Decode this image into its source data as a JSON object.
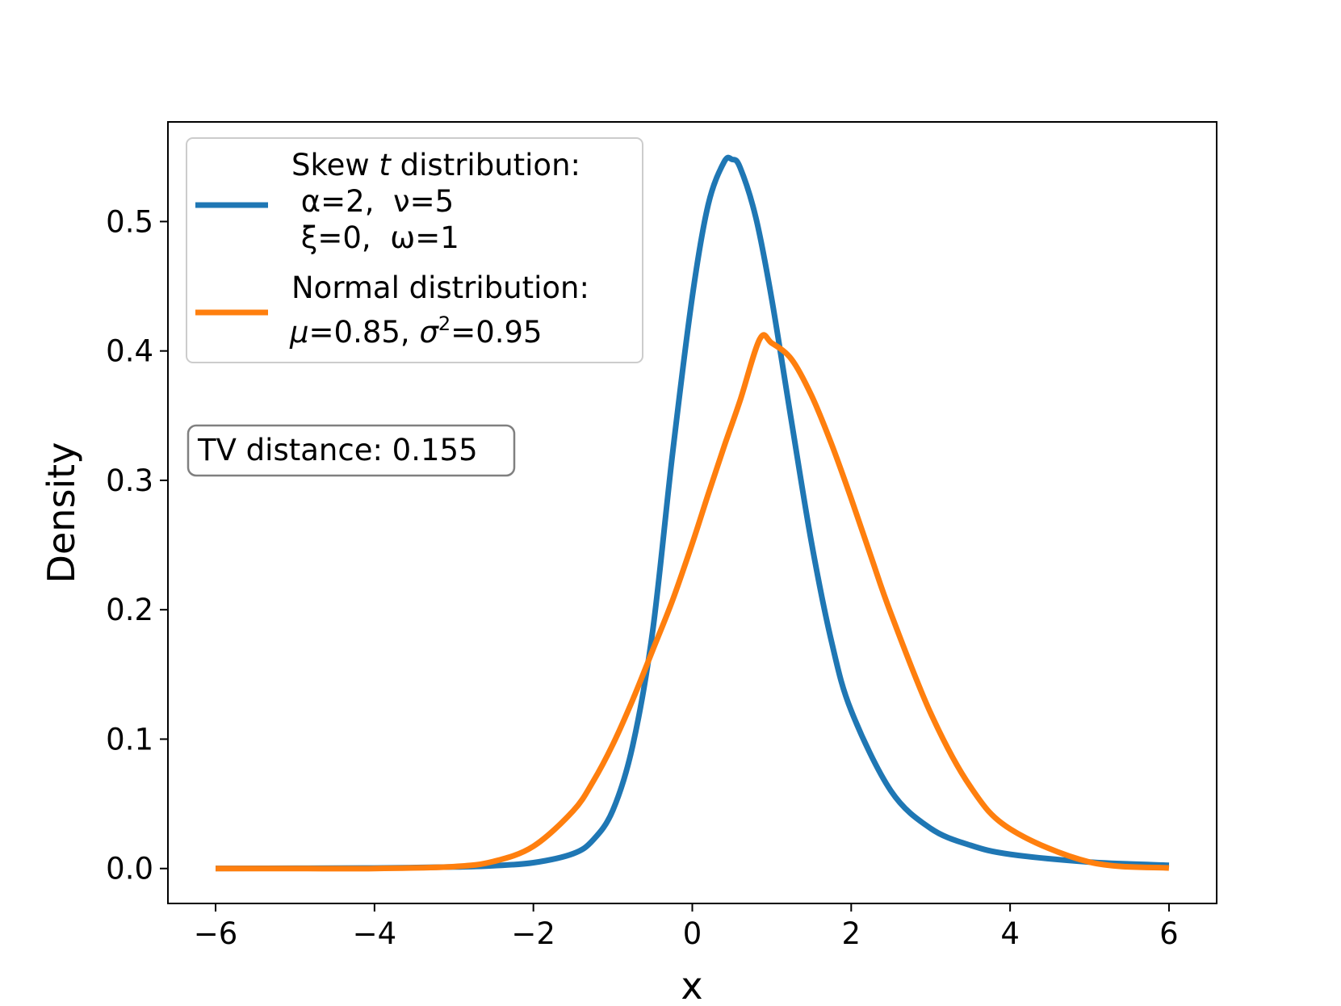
{
  "chart_data": {
    "type": "line",
    "title": "",
    "xlabel": "x",
    "ylabel": "Density",
    "xlim": [
      -6.6,
      6.6
    ],
    "ylim": [
      -0.027,
      0.577
    ],
    "xticks": [
      -6,
      -4,
      -2,
      0,
      2,
      4,
      6
    ],
    "xtick_labels": [
      "−6",
      "−4",
      "−2",
      "0",
      "2",
      "4",
      "6"
    ],
    "yticks": [
      0.0,
      0.1,
      0.2,
      0.3,
      0.4,
      0.5
    ],
    "ytick_labels": [
      "0.0",
      "0.1",
      "0.2",
      "0.3",
      "0.4",
      "0.5"
    ],
    "grid": false,
    "legend_position": "upper-left",
    "series": [
      {
        "name": "Skew t distribution: α=2, ν=5 ξ=0, ω=1",
        "color": "#1f77b4",
        "x": [
          -6,
          -5,
          -4,
          -3,
          -2.5,
          -2,
          -1.5,
          -1.25,
          -1,
          -0.75,
          -0.5,
          -0.25,
          0,
          0.2,
          0.4,
          0.5,
          0.6,
          0.8,
          1.0,
          1.25,
          1.5,
          1.75,
          2.0,
          2.5,
          3.0,
          3.5,
          4.0,
          5.0,
          6.0
        ],
        "y": [
          0.0001,
          0.0002,
          0.0004,
          0.0012,
          0.0022,
          0.0045,
          0.0115,
          0.022,
          0.045,
          0.095,
          0.183,
          0.32,
          0.442,
          0.513,
          0.546,
          0.548,
          0.542,
          0.503,
          0.44,
          0.345,
          0.252,
          0.176,
          0.122,
          0.06,
          0.031,
          0.018,
          0.011,
          0.005,
          0.0025
        ]
      },
      {
        "name": "Normal distribution: μ=0.85, σ²=0.95",
        "color": "#ff7f0e",
        "x": [
          -6,
          -5,
          -4,
          -3,
          -2.5,
          -2,
          -1.5,
          -1.25,
          -1,
          -0.75,
          -0.5,
          -0.25,
          0,
          0.2,
          0.4,
          0.6,
          0.85,
          1.0,
          1.25,
          1.5,
          1.75,
          2.0,
          2.25,
          2.5,
          3.0,
          3.5,
          4.0,
          5.0,
          6.0
        ],
        "y": [
          0.0,
          0.0,
          0.0,
          0.0015,
          0.0055,
          0.0172,
          0.0445,
          0.0671,
          0.0959,
          0.1304,
          0.1685,
          0.2071,
          0.2513,
          0.2892,
          0.3261,
          0.3614,
          0.4093,
          0.4061,
          0.3935,
          0.3656,
          0.3284,
          0.2859,
          0.241,
          0.1971,
          0.1201,
          0.0633,
          0.0306,
          0.005,
          0.0004
        ]
      }
    ],
    "legend": {
      "entries": [
        {
          "color": "#1f77b4",
          "lines": [
            {
              "prefix": "Skew ",
              "italic": "t",
              "suffix": " distribution:"
            },
            {
              "text": " α=2,  ν=5"
            },
            {
              "text": " ξ=0,  ω=1"
            }
          ]
        },
        {
          "color": "#ff7f0e",
          "lines": [
            {
              "text": "Normal distribution:"
            },
            {
              "mu": "μ",
              "mu_rest": "=0.85, ",
              "sigma": "σ",
              "sup": "2",
              "sigma_rest": "=0.95"
            }
          ]
        }
      ]
    },
    "annotation": {
      "text": "TV distance: 0.155"
    }
  }
}
